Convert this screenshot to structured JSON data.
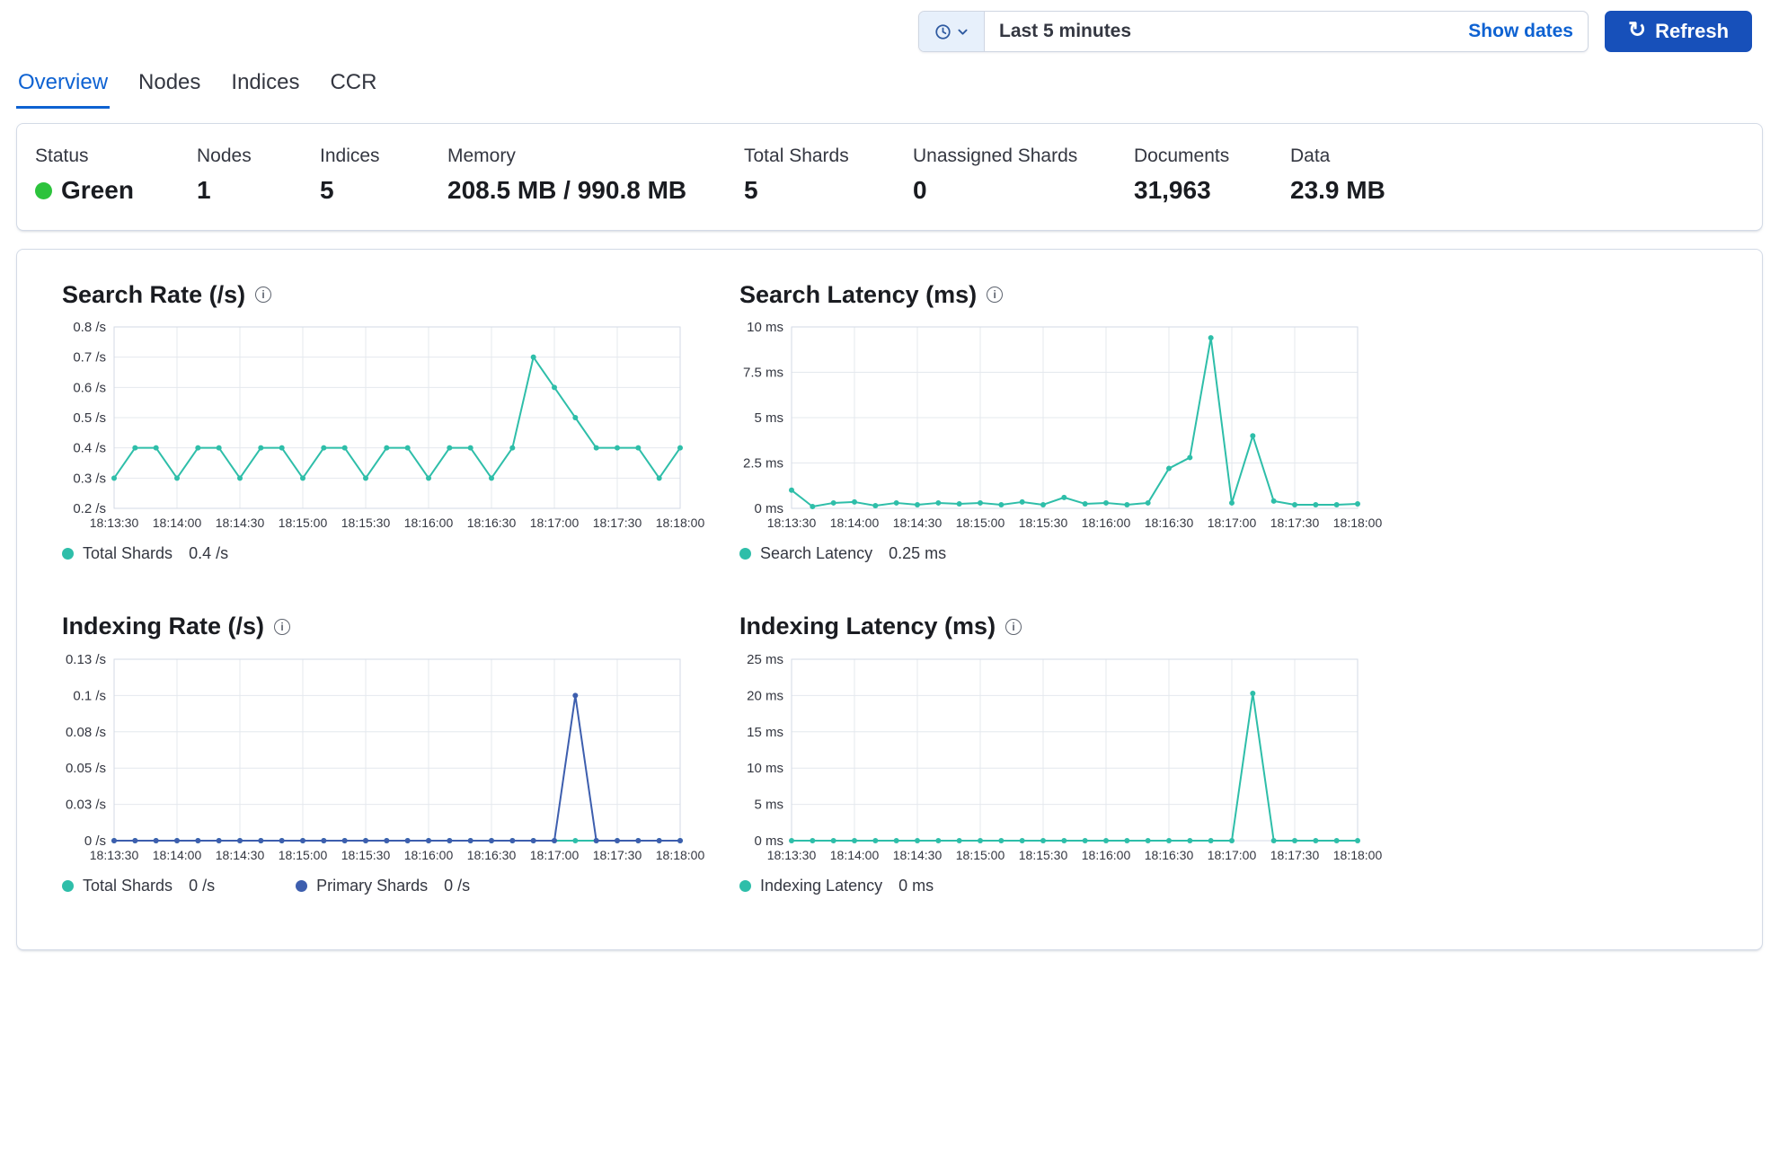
{
  "header": {
    "time_range": "Last 5 minutes",
    "show_dates_label": "Show dates",
    "refresh_label": "Refresh"
  },
  "tabs": [
    {
      "label": "Overview",
      "active": true
    },
    {
      "label": "Nodes",
      "active": false
    },
    {
      "label": "Indices",
      "active": false
    },
    {
      "label": "CCR",
      "active": false
    }
  ],
  "summary": [
    {
      "label": "Status",
      "value": "Green"
    },
    {
      "label": "Nodes",
      "value": "1"
    },
    {
      "label": "Indices",
      "value": "5"
    },
    {
      "label": "Memory",
      "value": "208.5 MB / 990.8 MB"
    },
    {
      "label": "Total Shards",
      "value": "5"
    },
    {
      "label": "Unassigned Shards",
      "value": "0"
    },
    {
      "label": "Documents",
      "value": "31,963"
    },
    {
      "label": "Data",
      "value": "23.9 MB"
    }
  ],
  "colors": {
    "status_green": "#2CC33C",
    "teal_series": "#2EBEA9",
    "blue_series": "#3D5EAE",
    "link_blue": "#0E62D2",
    "button_blue": "#1750BA"
  },
  "chart_data": [
    {
      "type": "line",
      "title": "Search Rate (/s)",
      "ylim": [
        0.2,
        0.8
      ],
      "x": [
        "18:13:30",
        "18:13:40",
        "18:13:50",
        "18:14:00",
        "18:14:10",
        "18:14:20",
        "18:14:30",
        "18:14:40",
        "18:14:50",
        "18:15:00",
        "18:15:10",
        "18:15:20",
        "18:15:30",
        "18:15:40",
        "18:15:50",
        "18:16:00",
        "18:16:10",
        "18:16:20",
        "18:16:30",
        "18:16:40",
        "18:16:50",
        "18:17:00",
        "18:17:10",
        "18:17:20",
        "18:17:30",
        "18:17:40",
        "18:17:50",
        "18:18:00"
      ],
      "x_ticks": [
        {
          "index": 0,
          "label": "18:13:30"
        },
        {
          "index": 3,
          "label": "18:14:00"
        },
        {
          "index": 6,
          "label": "18:14:30"
        },
        {
          "index": 9,
          "label": "18:15:00"
        },
        {
          "index": 12,
          "label": "18:15:30"
        },
        {
          "index": 15,
          "label": "18:16:00"
        },
        {
          "index": 18,
          "label": "18:16:30"
        },
        {
          "index": 21,
          "label": "18:17:00"
        },
        {
          "index": 24,
          "label": "18:17:30"
        },
        {
          "index": 27,
          "label": "18:18:00"
        }
      ],
      "y_ticks": [
        {
          "value": 0.2,
          "label": "0.2 /s"
        },
        {
          "value": 0.3,
          "label": "0.3 /s"
        },
        {
          "value": 0.4,
          "label": "0.4 /s"
        },
        {
          "value": 0.5,
          "label": "0.5 /s"
        },
        {
          "value": 0.6,
          "label": "0.6 /s"
        },
        {
          "value": 0.7,
          "label": "0.7 /s"
        },
        {
          "value": 0.8,
          "label": "0.8 /s"
        }
      ],
      "series": [
        {
          "name": "Total Shards",
          "color": "#2EBEA9",
          "values": [
            0.3,
            0.4,
            0.4,
            0.3,
            0.4,
            0.4,
            0.3,
            0.4,
            0.4,
            0.3,
            0.4,
            0.4,
            0.3,
            0.4,
            0.4,
            0.3,
            0.4,
            0.4,
            0.3,
            0.4,
            0.7,
            0.6,
            0.5,
            0.4,
            0.4,
            0.4,
            0.3,
            0.4
          ]
        }
      ],
      "legend": [
        {
          "name": "Total Shards",
          "value": "0.4 /s",
          "color": "#2EBEA9"
        }
      ]
    },
    {
      "type": "line",
      "title": "Search Latency (ms)",
      "ylim": [
        0,
        10
      ],
      "x": [
        "18:13:30",
        "18:13:40",
        "18:13:50",
        "18:14:00",
        "18:14:10",
        "18:14:20",
        "18:14:30",
        "18:14:40",
        "18:14:50",
        "18:15:00",
        "18:15:10",
        "18:15:20",
        "18:15:30",
        "18:15:40",
        "18:15:50",
        "18:16:00",
        "18:16:10",
        "18:16:20",
        "18:16:30",
        "18:16:40",
        "18:16:50",
        "18:17:00",
        "18:17:10",
        "18:17:20",
        "18:17:30",
        "18:17:40",
        "18:17:50",
        "18:18:00"
      ],
      "x_ticks": [
        {
          "index": 0,
          "label": "18:13:30"
        },
        {
          "index": 3,
          "label": "18:14:00"
        },
        {
          "index": 6,
          "label": "18:14:30"
        },
        {
          "index": 9,
          "label": "18:15:00"
        },
        {
          "index": 12,
          "label": "18:15:30"
        },
        {
          "index": 15,
          "label": "18:16:00"
        },
        {
          "index": 18,
          "label": "18:16:30"
        },
        {
          "index": 21,
          "label": "18:17:00"
        },
        {
          "index": 24,
          "label": "18:17:30"
        },
        {
          "index": 27,
          "label": "18:18:00"
        }
      ],
      "y_ticks": [
        {
          "value": 0,
          "label": "0 ms"
        },
        {
          "value": 2.5,
          "label": "2.5 ms"
        },
        {
          "value": 5,
          "label": "5 ms"
        },
        {
          "value": 7.5,
          "label": "7.5 ms"
        },
        {
          "value": 10,
          "label": "10 ms"
        }
      ],
      "series": [
        {
          "name": "Search Latency",
          "color": "#2EBEA9",
          "values": [
            1,
            0.1,
            0.3,
            0.35,
            0.15,
            0.3,
            0.2,
            0.3,
            0.25,
            0.3,
            0.2,
            0.35,
            0.2,
            0.6,
            0.25,
            0.3,
            0.2,
            0.3,
            2.2,
            2.8,
            9.4,
            0.3,
            4,
            0.4,
            0.2,
            0.2,
            0.2,
            0.25
          ]
        }
      ],
      "legend": [
        {
          "name": "Search Latency",
          "value": "0.25 ms",
          "color": "#2EBEA9"
        }
      ]
    },
    {
      "type": "line",
      "title": "Indexing Rate (/s)",
      "ylim": [
        0,
        0.125
      ],
      "x": [
        "18:13:30",
        "18:13:40",
        "18:13:50",
        "18:14:00",
        "18:14:10",
        "18:14:20",
        "18:14:30",
        "18:14:40",
        "18:14:50",
        "18:15:00",
        "18:15:10",
        "18:15:20",
        "18:15:30",
        "18:15:40",
        "18:15:50",
        "18:16:00",
        "18:16:10",
        "18:16:20",
        "18:16:30",
        "18:16:40",
        "18:16:50",
        "18:17:00",
        "18:17:10",
        "18:17:20",
        "18:17:30",
        "18:17:40",
        "18:17:50",
        "18:18:00"
      ],
      "x_ticks": [
        {
          "index": 0,
          "label": "18:13:30"
        },
        {
          "index": 3,
          "label": "18:14:00"
        },
        {
          "index": 6,
          "label": "18:14:30"
        },
        {
          "index": 9,
          "label": "18:15:00"
        },
        {
          "index": 12,
          "label": "18:15:30"
        },
        {
          "index": 15,
          "label": "18:16:00"
        },
        {
          "index": 18,
          "label": "18:16:30"
        },
        {
          "index": 21,
          "label": "18:17:00"
        },
        {
          "index": 24,
          "label": "18:17:30"
        },
        {
          "index": 27,
          "label": "18:18:00"
        }
      ],
      "y_ticks": [
        {
          "value": 0,
          "label": "0 /s"
        },
        {
          "value": 0.025,
          "label": "0.03 /s"
        },
        {
          "value": 0.05,
          "label": "0.05 /s"
        },
        {
          "value": 0.075,
          "label": "0.08 /s"
        },
        {
          "value": 0.1,
          "label": "0.1 /s"
        },
        {
          "value": 0.125,
          "label": "0.13 /s"
        }
      ],
      "series": [
        {
          "name": "Total Shards",
          "color": "#2EBEA9",
          "values": [
            0,
            0,
            0,
            0,
            0,
            0,
            0,
            0,
            0,
            0,
            0,
            0,
            0,
            0,
            0,
            0,
            0,
            0,
            0,
            0,
            0,
            0,
            0,
            0,
            0,
            0,
            0,
            0
          ]
        },
        {
          "name": "Primary Shards",
          "color": "#3D5EAE",
          "values": [
            0,
            0,
            0,
            0,
            0,
            0,
            0,
            0,
            0,
            0,
            0,
            0,
            0,
            0,
            0,
            0,
            0,
            0,
            0,
            0,
            0,
            0,
            0.1,
            0,
            0,
            0,
            0,
            0
          ]
        }
      ],
      "legend": [
        {
          "name": "Total Shards",
          "value": "0 /s",
          "color": "#2EBEA9"
        },
        {
          "name": "Primary Shards",
          "value": "0 /s",
          "color": "#3D5EAE"
        }
      ]
    },
    {
      "type": "line",
      "title": "Indexing Latency (ms)",
      "ylim": [
        0,
        25
      ],
      "x": [
        "18:13:30",
        "18:13:40",
        "18:13:50",
        "18:14:00",
        "18:14:10",
        "18:14:20",
        "18:14:30",
        "18:14:40",
        "18:14:50",
        "18:15:00",
        "18:15:10",
        "18:15:20",
        "18:15:30",
        "18:15:40",
        "18:15:50",
        "18:16:00",
        "18:16:10",
        "18:16:20",
        "18:16:30",
        "18:16:40",
        "18:16:50",
        "18:17:00",
        "18:17:10",
        "18:17:20",
        "18:17:30",
        "18:17:40",
        "18:17:50",
        "18:18:00"
      ],
      "x_ticks": [
        {
          "index": 0,
          "label": "18:13:30"
        },
        {
          "index": 3,
          "label": "18:14:00"
        },
        {
          "index": 6,
          "label": "18:14:30"
        },
        {
          "index": 9,
          "label": "18:15:00"
        },
        {
          "index": 12,
          "label": "18:15:30"
        },
        {
          "index": 15,
          "label": "18:16:00"
        },
        {
          "index": 18,
          "label": "18:16:30"
        },
        {
          "index": 21,
          "label": "18:17:00"
        },
        {
          "index": 24,
          "label": "18:17:30"
        },
        {
          "index": 27,
          "label": "18:18:00"
        }
      ],
      "y_ticks": [
        {
          "value": 0,
          "label": "0 ms"
        },
        {
          "value": 5,
          "label": "5 ms"
        },
        {
          "value": 10,
          "label": "10 ms"
        },
        {
          "value": 15,
          "label": "15 ms"
        },
        {
          "value": 20,
          "label": "20 ms"
        },
        {
          "value": 25,
          "label": "25 ms"
        }
      ],
      "series": [
        {
          "name": "Indexing Latency",
          "color": "#2EBEA9",
          "values": [
            0,
            0,
            0,
            0,
            0,
            0,
            0,
            0,
            0,
            0,
            0,
            0,
            0,
            0,
            0,
            0,
            0,
            0,
            0,
            0,
            0,
            0,
            20.3,
            0,
            0,
            0,
            0,
            0
          ]
        }
      ],
      "legend": [
        {
          "name": "Indexing Latency",
          "value": "0 ms",
          "color": "#2EBEA9"
        }
      ]
    }
  ]
}
